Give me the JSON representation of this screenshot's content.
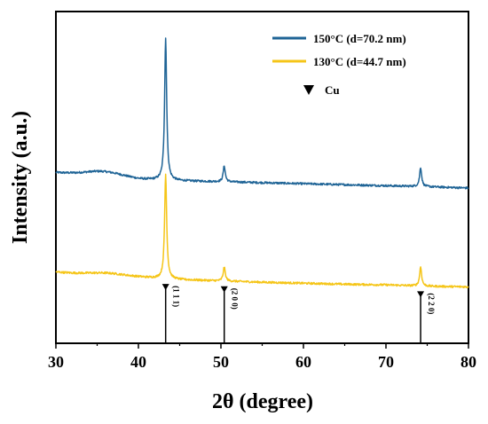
{
  "chart_data": {
    "type": "line",
    "xlabel": "2θ (degree)",
    "ylabel": "Intensity (a.u.)",
    "xlim": [
      30,
      80
    ],
    "ylim": [
      0,
      1
    ],
    "xticks": [
      30,
      40,
      50,
      60,
      70,
      80
    ],
    "yticks_shown": false,
    "grid": false,
    "legend_position": "top-right",
    "series": [
      {
        "name": "150°C (d=70.2 nm)",
        "color": "#1f6496",
        "baseline": [
          [
            30,
            0.515
          ],
          [
            35,
            0.508
          ],
          [
            40,
            0.495
          ],
          [
            45,
            0.49
          ],
          [
            50,
            0.487
          ],
          [
            55,
            0.484
          ],
          [
            60,
            0.481
          ],
          [
            65,
            0.478
          ],
          [
            70,
            0.475
          ],
          [
            75,
            0.472
          ],
          [
            80,
            0.468
          ]
        ],
        "peaks": [
          [
            43.3,
            0.92
          ],
          [
            50.4,
            0.535
          ],
          [
            74.2,
            0.53
          ]
        ],
        "hump": [
          36,
          0.012,
          3
        ]
      },
      {
        "name": "130°C (d=44.7 nm)",
        "color": "#f5c518",
        "baseline": [
          [
            30,
            0.215
          ],
          [
            35,
            0.205
          ],
          [
            40,
            0.2
          ],
          [
            45,
            0.192
          ],
          [
            50,
            0.188
          ],
          [
            55,
            0.184
          ],
          [
            60,
            0.181
          ],
          [
            65,
            0.178
          ],
          [
            70,
            0.176
          ],
          [
            75,
            0.172
          ],
          [
            80,
            0.17
          ]
        ],
        "peaks": [
          [
            43.3,
            0.51
          ],
          [
            50.4,
            0.23
          ],
          [
            74.2,
            0.23
          ]
        ],
        "hump": [
          36,
          0.008,
          3
        ]
      }
    ],
    "reference": {
      "name": "Cu",
      "marker": "triangle-down",
      "lines": [
        {
          "x": 43.3,
          "label": "(1 1 1)"
        },
        {
          "x": 50.4,
          "label": "(2 0 0)"
        },
        {
          "x": 74.2,
          "label": "(2 2 0)"
        }
      ]
    }
  }
}
